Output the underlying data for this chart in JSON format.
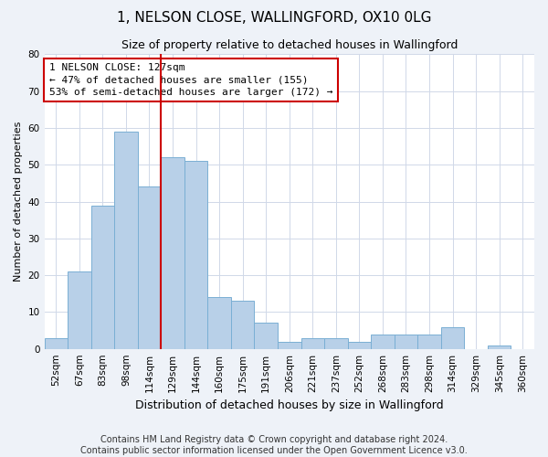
{
  "title": "1, NELSON CLOSE, WALLINGFORD, OX10 0LG",
  "subtitle": "Size of property relative to detached houses in Wallingford",
  "xlabel": "Distribution of detached houses by size in Wallingford",
  "ylabel": "Number of detached properties",
  "bin_labels": [
    "52sqm",
    "67sqm",
    "83sqm",
    "98sqm",
    "114sqm",
    "129sqm",
    "144sqm",
    "160sqm",
    "175sqm",
    "191sqm",
    "206sqm",
    "221sqm",
    "237sqm",
    "252sqm",
    "268sqm",
    "283sqm",
    "298sqm",
    "314sqm",
    "329sqm",
    "345sqm",
    "360sqm"
  ],
  "bar_values": [
    3,
    21,
    39,
    59,
    44,
    52,
    51,
    14,
    13,
    7,
    2,
    3,
    3,
    2,
    4,
    4,
    4,
    6,
    0,
    1,
    0
  ],
  "bar_color": "#b8d0e8",
  "bar_edge_color": "#7aafd4",
  "red_line_color": "#cc0000",
  "annotation_line1": "1 NELSON CLOSE: 127sqm",
  "annotation_line2": "← 47% of detached houses are smaller (155)",
  "annotation_line3": "53% of semi-detached houses are larger (172) →",
  "annotation_box_edge_color": "#cc0000",
  "ylim": [
    0,
    80
  ],
  "yticks": [
    0,
    10,
    20,
    30,
    40,
    50,
    60,
    70,
    80
  ],
  "footer_line1": "Contains HM Land Registry data © Crown copyright and database right 2024.",
  "footer_line2": "Contains public sector information licensed under the Open Government Licence v3.0.",
  "bg_color": "#eef2f8",
  "plot_bg_color": "#ffffff",
  "title_fontsize": 11,
  "subtitle_fontsize": 9,
  "xlabel_fontsize": 9,
  "ylabel_fontsize": 8,
  "tick_fontsize": 7.5,
  "annotation_fontsize": 8,
  "footer_fontsize": 7
}
